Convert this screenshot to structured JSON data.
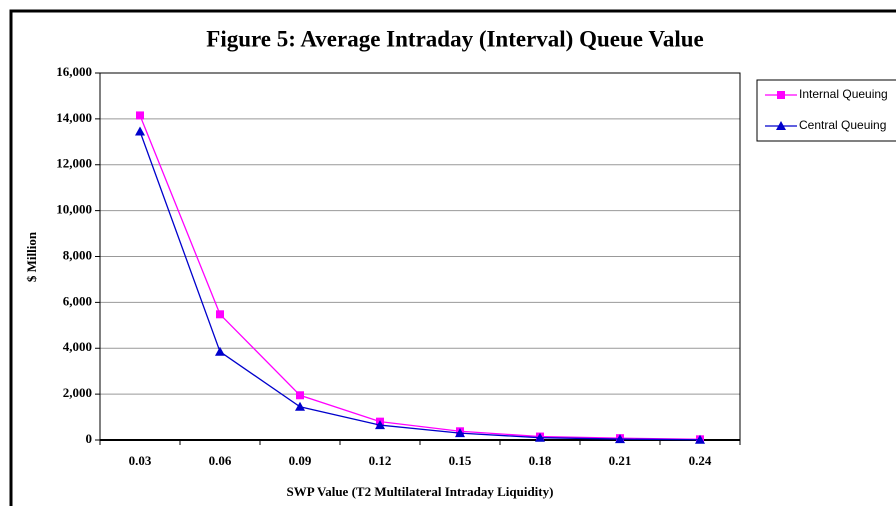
{
  "chart_data": {
    "type": "line",
    "title": "Figure 5: Average Intraday (Interval) Queue Value",
    "x_label": "SWP Value (T2 Multilateral Intraday Liquidity)",
    "y_label": "$ Million",
    "categories": [
      "0.03",
      "0.06",
      "0.09",
      "0.12",
      "0.15",
      "0.18",
      "0.21",
      "0.24"
    ],
    "series": [
      {
        "name": "Internal Queuing",
        "color": "#ff00ff",
        "marker": "square",
        "values": [
          14150,
          5480,
          1950,
          800,
          380,
          150,
          80,
          30
        ]
      },
      {
        "name": "Central Queuing",
        "color": "#0000cc",
        "marker": "triangle",
        "values": [
          13450,
          3850,
          1450,
          650,
          300,
          100,
          40,
          10
        ]
      }
    ],
    "ylim": [
      0,
      16000
    ],
    "yticks": [
      0,
      {
        "value": 2000,
        "label": "2,000"
      },
      {
        "value": 4000,
        "label": "4,000"
      },
      {
        "value": 6000,
        "label": "6,000"
      },
      {
        "value": 8000,
        "label": "8,000"
      },
      {
        "value": 10000,
        "label": "10,000"
      },
      {
        "value": 12000,
        "label": "12,000"
      },
      {
        "value": 14000,
        "label": "14,000"
      },
      {
        "value": 16000,
        "label": "16,000"
      }
    ],
    "grid": true,
    "legend": "right"
  }
}
